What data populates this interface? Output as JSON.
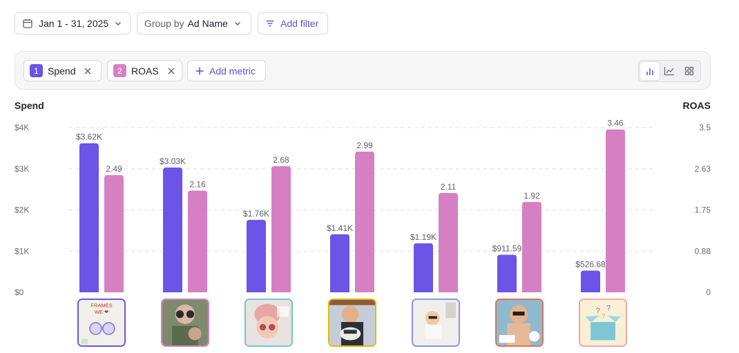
{
  "toolbar": {
    "date_range": "Jan 1 - 31, 2025",
    "group_by_prefix": "Group by",
    "group_by_value": "Ad Name",
    "add_filter": "Add filter"
  },
  "metrics": {
    "items": [
      {
        "index": "1",
        "label": "Spend",
        "color": "#6b54e6"
      },
      {
        "index": "2",
        "label": "ROAS",
        "color": "#d580c3"
      }
    ],
    "add_metric": "Add metric",
    "view_modes": [
      "bar-chart-icon",
      "line-chart-icon",
      "grid-icon"
    ],
    "active_view": "bar-chart-icon"
  },
  "chart": {
    "left_axis_title": "Spend",
    "right_axis_title": "ROAS"
  },
  "chart_data": {
    "type": "bar",
    "series": [
      {
        "name": "Spend",
        "axis": "left",
        "color": "#6b54e6",
        "values": [
          3620,
          3030,
          1760,
          1410,
          1190,
          911.59,
          526.68
        ],
        "labels": [
          "$3.62K",
          "$3.03K",
          "$1.76K",
          "$1.41K",
          "$1.19K",
          "$911.59",
          "$526.68"
        ]
      },
      {
        "name": "ROAS",
        "axis": "right",
        "color": "#d580c3",
        "values": [
          2.49,
          2.16,
          2.68,
          2.99,
          2.11,
          1.92,
          3.46
        ],
        "labels": [
          "2.49",
          "2.16",
          "2.68",
          "2.99",
          "2.11",
          "1.92",
          "3.46"
        ]
      }
    ],
    "left_axis": {
      "min": 0,
      "max": 4000,
      "ticks": [
        0,
        1000,
        2000,
        3000,
        4000
      ],
      "tick_labels": [
        "$0",
        "$1K",
        "$2K",
        "$3K",
        "$4K"
      ]
    },
    "right_axis": {
      "min": 0,
      "max": 3.5,
      "ticks": [
        0,
        0.875,
        1.75,
        2.625,
        3.5
      ],
      "tick_labels": [
        "0",
        "0.88",
        "1.75",
        "2.63",
        "3.5"
      ]
    },
    "grid": true
  },
  "thumbnails": [
    {
      "name": "ad-thumbnail-frames-we-love",
      "border": "#6b54e6",
      "caption": "FRAMES WE ❤"
    },
    {
      "name": "ad-thumbnail-round-sunglasses",
      "border": "#d580c3"
    },
    {
      "name": "ad-thumbnail-pink-hat-baby",
      "border": "#74c4c8"
    },
    {
      "name": "ad-thumbnail-snow-family",
      "border": "#e6b800"
    },
    {
      "name": "ad-thumbnail-toddler-room",
      "border": "#8b94e0"
    },
    {
      "name": "ad-thumbnail-beach-baby",
      "border": "#e0744f"
    },
    {
      "name": "ad-thumbnail-gift-box",
      "border": "#f0a79e"
    }
  ]
}
